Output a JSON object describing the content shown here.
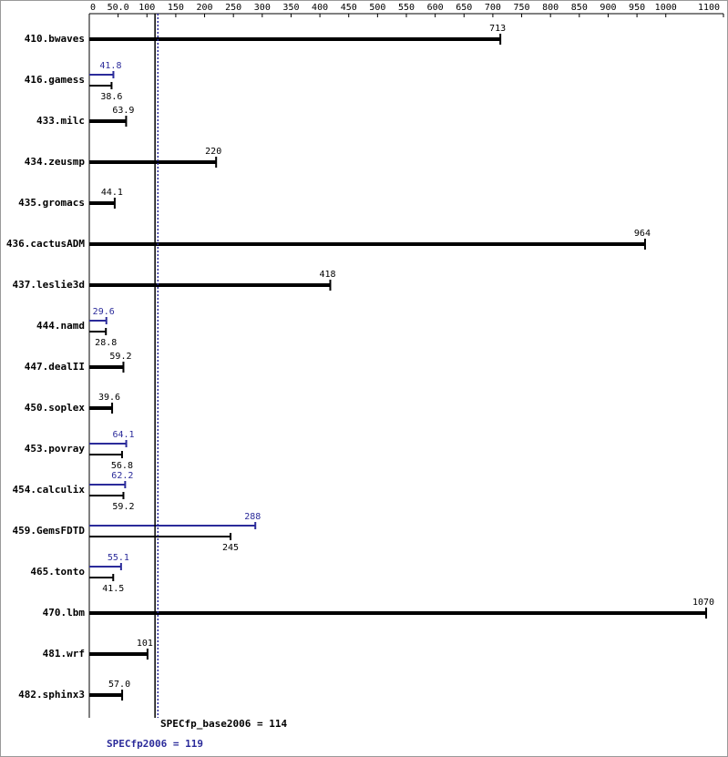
{
  "chart_data": {
    "type": "bar",
    "categories": [
      "410.bwaves",
      "416.gamess",
      "433.milc",
      "434.zeusmp",
      "435.gromacs",
      "436.cactusADM",
      "437.leslie3d",
      "444.namd",
      "447.dealII",
      "450.soplex",
      "453.povray",
      "454.calculix",
      "459.GemsFDTD",
      "465.tonto",
      "470.lbm",
      "481.wrf",
      "482.sphinx3"
    ],
    "series": [
      {
        "color": "#000000",
        "values": [
          713,
          38.6,
          63.9,
          220,
          44.1,
          964,
          418,
          28.8,
          59.2,
          39.6,
          56.8,
          59.2,
          245,
          41.5,
          1070,
          101,
          57.0
        ],
        "value_labels": [
          null,
          null,
          null,
          null,
          null,
          null,
          null,
          null,
          null,
          null,
          null,
          null,
          null,
          null,
          null,
          null,
          "57.0"
        ]
      },
      {
        "color": "#2b2b9a",
        "values": [
          null,
          41.8,
          null,
          null,
          null,
          null,
          null,
          29.6,
          null,
          null,
          64.1,
          62.2,
          288,
          55.1,
          null,
          null,
          null
        ]
      }
    ],
    "xlim": [
      0,
      1100
    ],
    "xticks": [
      0,
      {
        "value": 50,
        "label": "50.0"
      },
      100,
      150,
      200,
      250,
      300,
      350,
      400,
      450,
      500,
      550,
      600,
      650,
      700,
      750,
      800,
      850,
      900,
      950,
      1000,
      1100
    ],
    "reference_lines": [
      {
        "text": "SPECfp_base2006 = 114",
        "value": 114,
        "color": "#000000"
      },
      {
        "text": "SPECfp2006 = 119",
        "value": 119,
        "color": "#2b2b9a"
      }
    ]
  }
}
